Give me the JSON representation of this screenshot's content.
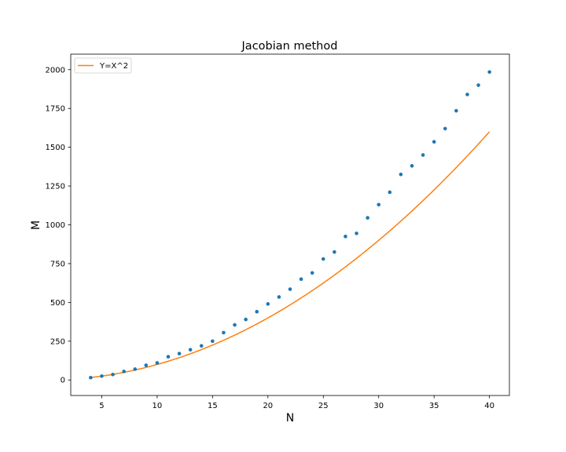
{
  "chart_data": {
    "type": "scatter",
    "title": "Jacobian method",
    "xlabel": "N",
    "ylabel": "M",
    "xlim": [
      2.2,
      41.8
    ],
    "ylim": [
      -100,
      2100
    ],
    "xticks": [
      5,
      10,
      15,
      20,
      25,
      30,
      35,
      40
    ],
    "yticks": [
      0,
      250,
      500,
      750,
      1000,
      1250,
      1500,
      1750,
      2000
    ],
    "grid": false,
    "legend_position": "top-left",
    "series": [
      {
        "kind": "scatter",
        "color": "#1f77b4",
        "x": [
          4,
          5,
          6,
          7,
          8,
          9,
          10,
          11,
          12,
          13,
          14,
          15,
          16,
          17,
          18,
          19,
          20,
          21,
          22,
          23,
          24,
          25,
          26,
          27,
          28,
          29,
          30,
          31,
          32,
          33,
          34,
          35,
          36,
          37,
          38,
          39,
          40
        ],
        "y": [
          15,
          25,
          35,
          55,
          70,
          95,
          110,
          150,
          170,
          195,
          220,
          250,
          305,
          355,
          390,
          440,
          490,
          535,
          585,
          650,
          690,
          780,
          825,
          925,
          945,
          1045,
          1130,
          1210,
          1325,
          1380,
          1450,
          1535,
          1620,
          1735,
          1840,
          1900,
          1985
        ]
      },
      {
        "kind": "line",
        "name": "Y=X^2",
        "color": "#ff7f0e",
        "function": "x^2",
        "x_range": [
          4,
          40
        ]
      }
    ]
  }
}
